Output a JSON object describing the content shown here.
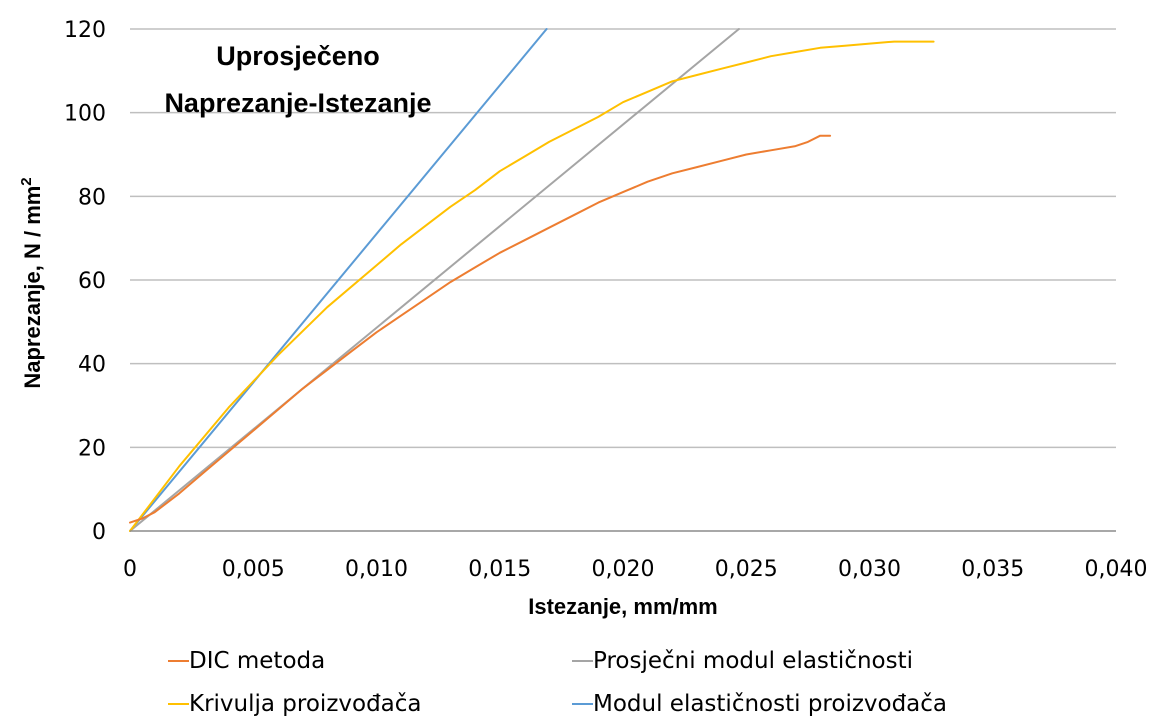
{
  "chart_data": {
    "type": "line",
    "title_lines": [
      "Uprosječeno",
      "Naprezanje-Istezanje"
    ],
    "xlabel": "Istezanje, mm/mm",
    "ylabel": "Naprezanje, N / mm",
    "ylabel_superscript": "2",
    "xlim": [
      0,
      0.04
    ],
    "ylim": [
      0,
      120
    ],
    "xticks": [
      0,
      0.005,
      0.01,
      0.015,
      0.02,
      0.025,
      0.03,
      0.035,
      0.04
    ],
    "xtick_labels": [
      "0",
      "0,005",
      "0,010",
      "0,015",
      "0,020",
      "0,025",
      "0,030",
      "0,035",
      "0,040"
    ],
    "yticks": [
      0,
      20,
      40,
      60,
      80,
      100,
      120
    ],
    "ytick_labels": [
      "0",
      "20",
      "40",
      "60",
      "80",
      "100",
      "120"
    ],
    "grid": "horizontal",
    "legend_position": "bottom",
    "series": [
      {
        "name": "DIC metoda",
        "color": "#ED7D31",
        "x": [
          0,
          0.0005,
          0.001,
          0.002,
          0.003,
          0.004,
          0.005,
          0.006,
          0.007,
          0.008,
          0.009,
          0.01,
          0.011,
          0.012,
          0.013,
          0.014,
          0.015,
          0.016,
          0.017,
          0.018,
          0.019,
          0.02,
          0.021,
          0.022,
          0.023,
          0.024,
          0.025,
          0.026,
          0.027,
          0.0275,
          0.028,
          0.0284
        ],
        "y": [
          2,
          3,
          4.5,
          9,
          14,
          19,
          24,
          29,
          34,
          38.5,
          43,
          47.5,
          51.5,
          55.5,
          59.5,
          63,
          66.5,
          69.5,
          72.5,
          75.5,
          78.5,
          81,
          83.5,
          85.5,
          87,
          88.5,
          90,
          91,
          92,
          93,
          94.5,
          94.5
        ]
      },
      {
        "name": "Prosječni modul elastičnosti",
        "color": "#A5A5A5",
        "x": [
          0,
          0.0247
        ],
        "y": [
          0,
          120
        ]
      },
      {
        "name": "Krivulja proizvođača",
        "color": "#FFC000",
        "x": [
          0,
          0.002,
          0.004,
          0.006,
          0.008,
          0.01,
          0.011,
          0.012,
          0.013,
          0.014,
          0.015,
          0.016,
          0.017,
          0.018,
          0.019,
          0.02,
          0.021,
          0.022,
          0.023,
          0.024,
          0.025,
          0.026,
          0.027,
          0.028,
          0.029,
          0.03,
          0.031,
          0.032,
          0.0326
        ],
        "y": [
          0,
          15.5,
          29.5,
          42,
          53.5,
          63.5,
          68.5,
          73,
          77.5,
          81.5,
          86,
          89.5,
          93,
          96,
          99,
          102.5,
          105,
          107.5,
          109,
          110.5,
          112,
          113.5,
          114.5,
          115.5,
          116,
          116.5,
          117,
          117,
          117
        ]
      },
      {
        "name": "Modul elastičnosti proizvođača",
        "color": "#5B9BD5",
        "x": [
          0,
          0.0169
        ],
        "y": [
          0,
          120
        ]
      }
    ]
  }
}
